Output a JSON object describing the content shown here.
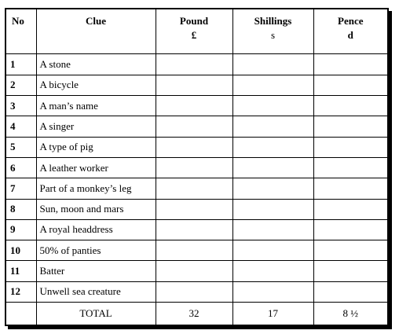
{
  "header": {
    "no": "No",
    "clue": "Clue",
    "pound": "Pound",
    "pound_unit": "£",
    "shillings": "Shillings",
    "shillings_unit": "s",
    "pence": "Pence",
    "pence_unit": "d"
  },
  "rows": [
    {
      "no": "1",
      "clue": "A stone",
      "pound": "",
      "shillings": "",
      "pence": ""
    },
    {
      "no": "2",
      "clue": "A bicycle",
      "pound": "",
      "shillings": "",
      "pence": ""
    },
    {
      "no": "3",
      "clue": "A man’s name",
      "pound": "",
      "shillings": "",
      "pence": ""
    },
    {
      "no": "4",
      "clue": "A singer",
      "pound": "",
      "shillings": "",
      "pence": ""
    },
    {
      "no": "5",
      "clue": "A type of pig",
      "pound": "",
      "shillings": "",
      "pence": ""
    },
    {
      "no": "6",
      "clue": "A leather worker",
      "pound": "",
      "shillings": "",
      "pence": ""
    },
    {
      "no": "7",
      "clue": "Part of a monkey’s leg",
      "pound": "",
      "shillings": "",
      "pence": ""
    },
    {
      "no": "8",
      "clue": "Sun, moon and mars",
      "pound": "",
      "shillings": "",
      "pence": ""
    },
    {
      "no": "9",
      "clue": "A royal headdress",
      "pound": "",
      "shillings": "",
      "pence": ""
    },
    {
      "no": "10",
      "clue": "50% of panties",
      "pound": "",
      "shillings": "",
      "pence": ""
    },
    {
      "no": "11",
      "clue": "Batter",
      "pound": "",
      "shillings": "",
      "pence": ""
    },
    {
      "no": "12",
      "clue": "Unwell sea creature",
      "pound": "",
      "shillings": "",
      "pence": ""
    }
  ],
  "total": {
    "label": "TOTAL",
    "pound": "32",
    "shillings": "17",
    "pence": "8 ½"
  }
}
